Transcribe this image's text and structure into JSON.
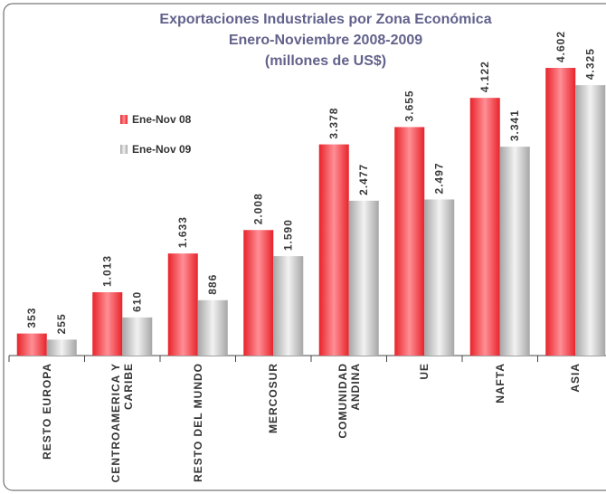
{
  "chart_data": {
    "type": "bar",
    "title": "Exportaciones Industriales por Zona Económica",
    "subtitle": [
      "Enero-Noviembre 2008-2009",
      "(millones de US$)"
    ],
    "categories": [
      "RESTO EUROPA",
      "CENTROAMERICA Y CARIBE",
      "RESTO DEL MUNDO",
      "MERCOSUR",
      "COMUNIDAD ANDINA",
      "UE",
      "NAFTA",
      "ASIA"
    ],
    "series": [
      {
        "name": "Ene-Nov 08",
        "color": "#e8232b",
        "values": [
          353,
          1013,
          1633,
          2008,
          3378,
          3655,
          4122,
          4602
        ],
        "value_labels": [
          "353",
          "1.013",
          "1.633",
          "2.008",
          "3.378",
          "3.655",
          "4.122",
          "4.602"
        ]
      },
      {
        "name": "Ene-Nov 09",
        "color": "#a6a6a6",
        "values": [
          255,
          610,
          886,
          1590,
          2477,
          2497,
          3341,
          4325
        ],
        "value_labels": [
          "255",
          "610",
          "886",
          "1.590",
          "2.477",
          "2.497",
          "3.341",
          "4.325"
        ]
      }
    ],
    "legend": "upper left"
  }
}
